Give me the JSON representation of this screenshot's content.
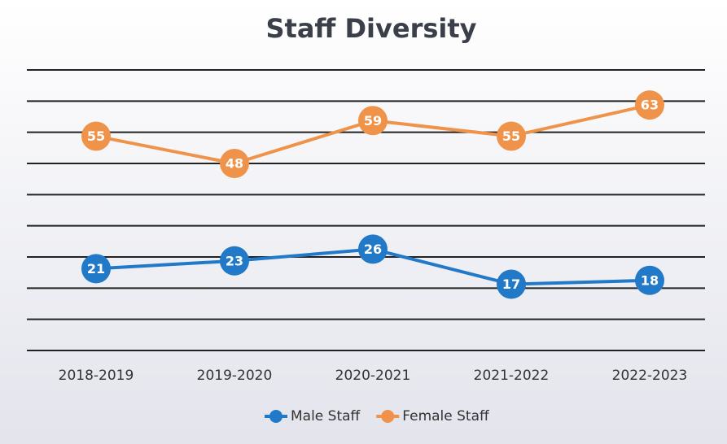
{
  "chart_data": {
    "type": "line",
    "title": "Staff Diversity",
    "categories": [
      "2018-2019",
      "2019-2020",
      "2020-2021",
      "2021-2022",
      "2022-2023"
    ],
    "series": [
      {
        "name": "Male Staff",
        "color": "#2179c8",
        "values": [
          21,
          23,
          26,
          17,
          18
        ]
      },
      {
        "name": "Female Staff",
        "color": "#f0934a",
        "values": [
          55,
          48,
          59,
          55,
          63
        ]
      }
    ],
    "ylim": [
      0,
      72
    ],
    "yticks": [
      0,
      8,
      16,
      24,
      32,
      40,
      48,
      56,
      64,
      72
    ],
    "grid": true,
    "legend": "bottom"
  }
}
